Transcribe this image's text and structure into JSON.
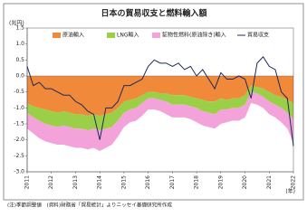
{
  "chart_data": {
    "type": "stacked-area-line",
    "title": "日本の貿易収支と燃料輸入額",
    "y_label": "(兆円)",
    "x_label": "(年)",
    "footnote": "(注)季節調整値　(資料)財務省「貿易統計」よりニッセイ基礎研究所作成",
    "categories": [
      "2011",
      null,
      null,
      null,
      "2012",
      null,
      null,
      null,
      "2013",
      null,
      null,
      null,
      "2014",
      null,
      null,
      null,
      "2015",
      null,
      null,
      null,
      "2016",
      null,
      null,
      null,
      "2017",
      null,
      null,
      null,
      "2018",
      null,
      null,
      null,
      "2019",
      null,
      null,
      null,
      "2020",
      null,
      null,
      null,
      "2021",
      null,
      null,
      null,
      "2022"
    ],
    "series": [
      {
        "name": "原油輸入",
        "color": "#f0893a",
        "kind": "area",
        "values": [
          -0.85,
          -0.95,
          -1.0,
          -1.05,
          -1.1,
          -1.15,
          -1.1,
          -1.15,
          -1.2,
          -1.2,
          -1.25,
          -1.2,
          -1.25,
          -1.2,
          -1.15,
          -1.0,
          -0.8,
          -0.75,
          -0.7,
          -0.6,
          -0.5,
          -0.5,
          -0.55,
          -0.55,
          -0.6,
          -0.6,
          -0.6,
          -0.65,
          -0.7,
          -0.75,
          -0.8,
          -0.8,
          -0.7,
          -0.75,
          -0.7,
          -0.7,
          -0.6,
          -0.3,
          -0.35,
          -0.4,
          -0.5,
          -0.6,
          -0.65,
          -0.75,
          -0.85
        ]
      },
      {
        "name": "LNG輸入",
        "color": "#9ccf48",
        "kind": "area",
        "values": [
          -0.3,
          -0.35,
          -0.4,
          -0.45,
          -0.45,
          -0.45,
          -0.45,
          -0.45,
          -0.45,
          -0.45,
          -0.45,
          -0.45,
          -0.45,
          -0.45,
          -0.45,
          -0.4,
          -0.35,
          -0.3,
          -0.3,
          -0.25,
          -0.2,
          -0.2,
          -0.2,
          -0.25,
          -0.3,
          -0.3,
          -0.3,
          -0.3,
          -0.3,
          -0.35,
          -0.35,
          -0.4,
          -0.35,
          -0.3,
          -0.3,
          -0.3,
          -0.3,
          -0.2,
          -0.2,
          -0.25,
          -0.3,
          -0.3,
          -0.35,
          -0.4,
          -0.5
        ]
      },
      {
        "name": "鉱物性燃料(原油除き)輸入",
        "color": "#f3a3da",
        "kind": "area",
        "values": [
          -0.5,
          -0.5,
          -0.55,
          -0.55,
          -0.55,
          -0.55,
          -0.6,
          -0.6,
          -0.6,
          -0.6,
          -0.6,
          -0.6,
          -0.65,
          -0.6,
          -0.55,
          -0.5,
          -0.45,
          -0.4,
          -0.4,
          -0.4,
          -0.35,
          -0.35,
          -0.35,
          -0.4,
          -0.4,
          -0.4,
          -0.4,
          -0.4,
          -0.45,
          -0.45,
          -0.45,
          -0.45,
          -0.45,
          -0.4,
          -0.4,
          -0.4,
          -0.4,
          -0.35,
          -0.35,
          -0.35,
          -0.4,
          -0.4,
          -0.45,
          -0.5,
          -0.75
        ]
      },
      {
        "name": "貿易収支",
        "color": "#1c2a5e",
        "kind": "line",
        "values": [
          0.3,
          -0.3,
          -0.2,
          -0.4,
          -0.4,
          -0.5,
          -0.6,
          -0.6,
          -0.8,
          -0.9,
          -1.1,
          -1.2,
          -2.0,
          -1.0,
          -1.0,
          -0.8,
          -0.3,
          -0.3,
          -0.2,
          -0.1,
          0.3,
          0.5,
          0.4,
          0.4,
          0.3,
          0.4,
          0.2,
          0.3,
          0.0,
          0.2,
          -0.1,
          -0.4,
          0.1,
          -0.1,
          -0.1,
          0.0,
          -0.1,
          -0.7,
          0.4,
          0.6,
          0.3,
          0.2,
          -0.5,
          -0.7,
          -2.2
        ]
      }
    ],
    "ylim": [
      -3.0,
      1.5
    ],
    "yticks": [
      1.5,
      {
        "value": 1,
        "label": "1.0"
      },
      0.5,
      {
        "value": 0,
        "label": "0.0"
      },
      -0.5,
      {
        "value": -1,
        "label": "-1.0"
      },
      -1.5,
      {
        "value": -2,
        "label": "-2.0"
      },
      -2.5,
      {
        "value": -3,
        "label": "-3.0"
      }
    ],
    "grid": false
  }
}
